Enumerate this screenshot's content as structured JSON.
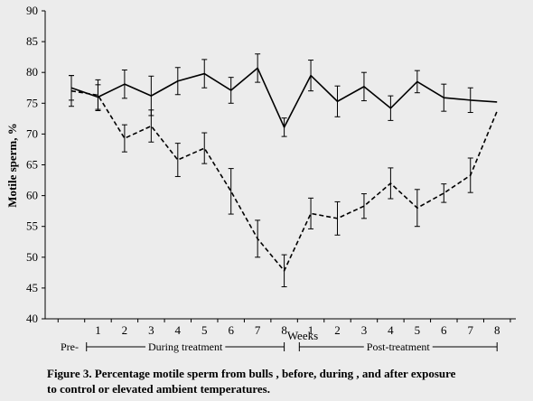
{
  "chart_data": {
    "type": "line",
    "ylabel": "Motile sperm, %",
    "xlabel": "Weeks",
    "ylim": [
      40,
      90
    ],
    "yticks": [
      40,
      45,
      50,
      55,
      60,
      65,
      70,
      75,
      80,
      85,
      90
    ],
    "categories": [
      "Pre-",
      "1",
      "2",
      "3",
      "4",
      "5",
      "6",
      "7",
      "8",
      "1",
      "2",
      "3",
      "4",
      "5",
      "6",
      "7",
      "8"
    ],
    "phases": [
      {
        "label": "Pre-",
        "start": 0,
        "end": 0
      },
      {
        "label": "During treatment",
        "start": 1,
        "end": 8
      },
      {
        "label": "Post-treatment",
        "start": 9,
        "end": 16
      }
    ],
    "series": [
      {
        "style": "solid",
        "values": [
          77.5,
          76.0,
          78.1,
          76.2,
          78.6,
          79.8,
          77.1,
          80.7,
          71.1,
          79.5,
          75.3,
          77.7,
          74.2,
          78.5,
          75.9,
          75.5,
          75.2
        ],
        "errors": [
          2.0,
          2.0,
          2.3,
          3.2,
          2.2,
          2.3,
          2.1,
          2.3,
          1.5,
          2.5,
          2.5,
          2.3,
          2.0,
          1.8,
          2.2,
          2.0,
          null
        ]
      },
      {
        "style": "dashed",
        "values": [
          77.0,
          76.3,
          69.3,
          71.3,
          65.8,
          67.7,
          60.7,
          53.0,
          47.8,
          57.1,
          56.3,
          58.3,
          62.0,
          58.0,
          60.4,
          63.3,
          73.7
        ],
        "errors": [
          2.5,
          2.5,
          2.2,
          2.6,
          2.7,
          2.5,
          3.7,
          3.0,
          2.6,
          2.5,
          2.7,
          2.0,
          2.5,
          3.0,
          1.5,
          2.8,
          null
        ]
      }
    ]
  },
  "caption": {
    "line1": "Figure 3. Percentage motile sperm from bulls , before, during , and after exposure",
    "line2": "to control or elevated ambient temperatures."
  }
}
